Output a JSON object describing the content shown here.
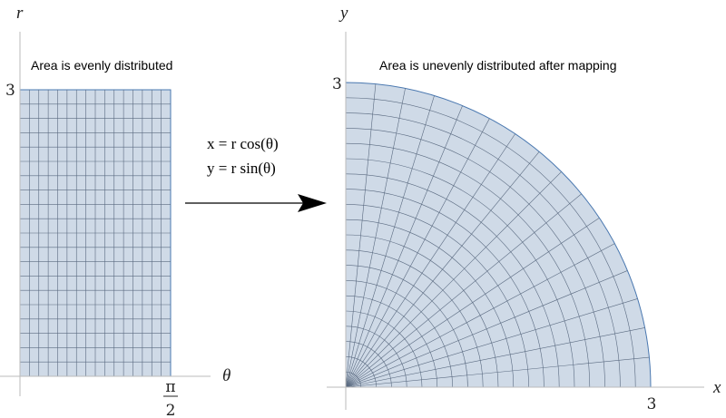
{
  "left_panel": {
    "caption": "Area is evenly distributed",
    "axis_labels": {
      "vertical": "r",
      "horizontal": "θ"
    },
    "ticks": {
      "vertical": "3",
      "horizontal": {
        "numerator": "π",
        "denominator": "2"
      }
    }
  },
  "mapping": {
    "equations": [
      "x = r cos(θ)",
      "y = r sin(θ)"
    ]
  },
  "right_panel": {
    "caption": "Area is unevenly distributed after mapping",
    "axis_labels": {
      "vertical": "y",
      "horizontal": "x"
    },
    "ticks": {
      "vertical": "3",
      "horizontal": "3"
    }
  }
}
